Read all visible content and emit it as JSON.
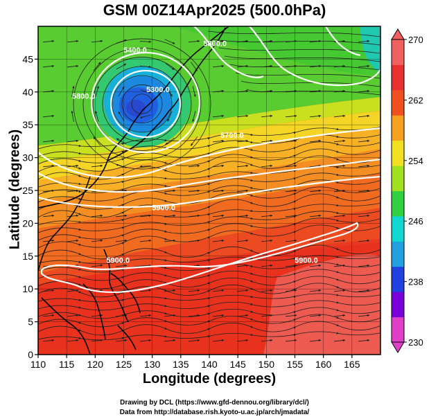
{
  "title": "GSM 00Z14Apr2025 (500.0hPa)",
  "xlabel": "Longitude (degrees)",
  "ylabel": "Latitude  (degrees)",
  "credits": {
    "line1": "Drawing by DCL (https://www.gfd-dennou.org/library/dcl/)",
    "line2": "Data from http://database.rish.kyoto-u.ac.jp/arch/jmadata/"
  },
  "map_data": {
    "type": "heatmap",
    "xlim": [
      110,
      170
    ],
    "ylim": [
      0,
      50
    ],
    "xticks": [
      "110",
      "115",
      "120",
      "125",
      "130",
      "135",
      "140",
      "145",
      "150",
      "155",
      "160",
      "165"
    ],
    "yticks": [
      "0",
      "5",
      "10",
      "15",
      "20",
      "25",
      "30",
      "35",
      "40",
      "45"
    ],
    "colorbar": {
      "min": 230,
      "max": 270,
      "ticks": [
        "230",
        "238",
        "246",
        "254",
        "262",
        "270"
      ],
      "colors": [
        "#e040c8",
        "#7a00d8",
        "#2040e0",
        "#20a0e0",
        "#10d8d0",
        "#30d040",
        "#a0e020",
        "#f0e020",
        "#f8a020",
        "#f05020",
        "#e83030",
        "#f06060"
      ]
    },
    "contour_labels": [
      {
        "text": "5300.0",
        "lon": 131,
        "lat": 40
      },
      {
        "text": "5400.0",
        "lon": 127,
        "lat": 46
      },
      {
        "text": "5700.0",
        "lon": 144,
        "lat": 33
      },
      {
        "text": "5800.0",
        "lon": 118,
        "lat": 39
      },
      {
        "text": "5800.0",
        "lon": 141,
        "lat": 47
      },
      {
        "text": "5900.0",
        "lon": 132,
        "lat": 22
      },
      {
        "text": "5900.0",
        "lon": 124,
        "lat": 14
      },
      {
        "text": "5900.0",
        "lon": 157,
        "lat": 14
      }
    ],
    "colors": {
      "contour": "#ffffff",
      "coast": "#000000",
      "streamline": "#202020"
    }
  }
}
